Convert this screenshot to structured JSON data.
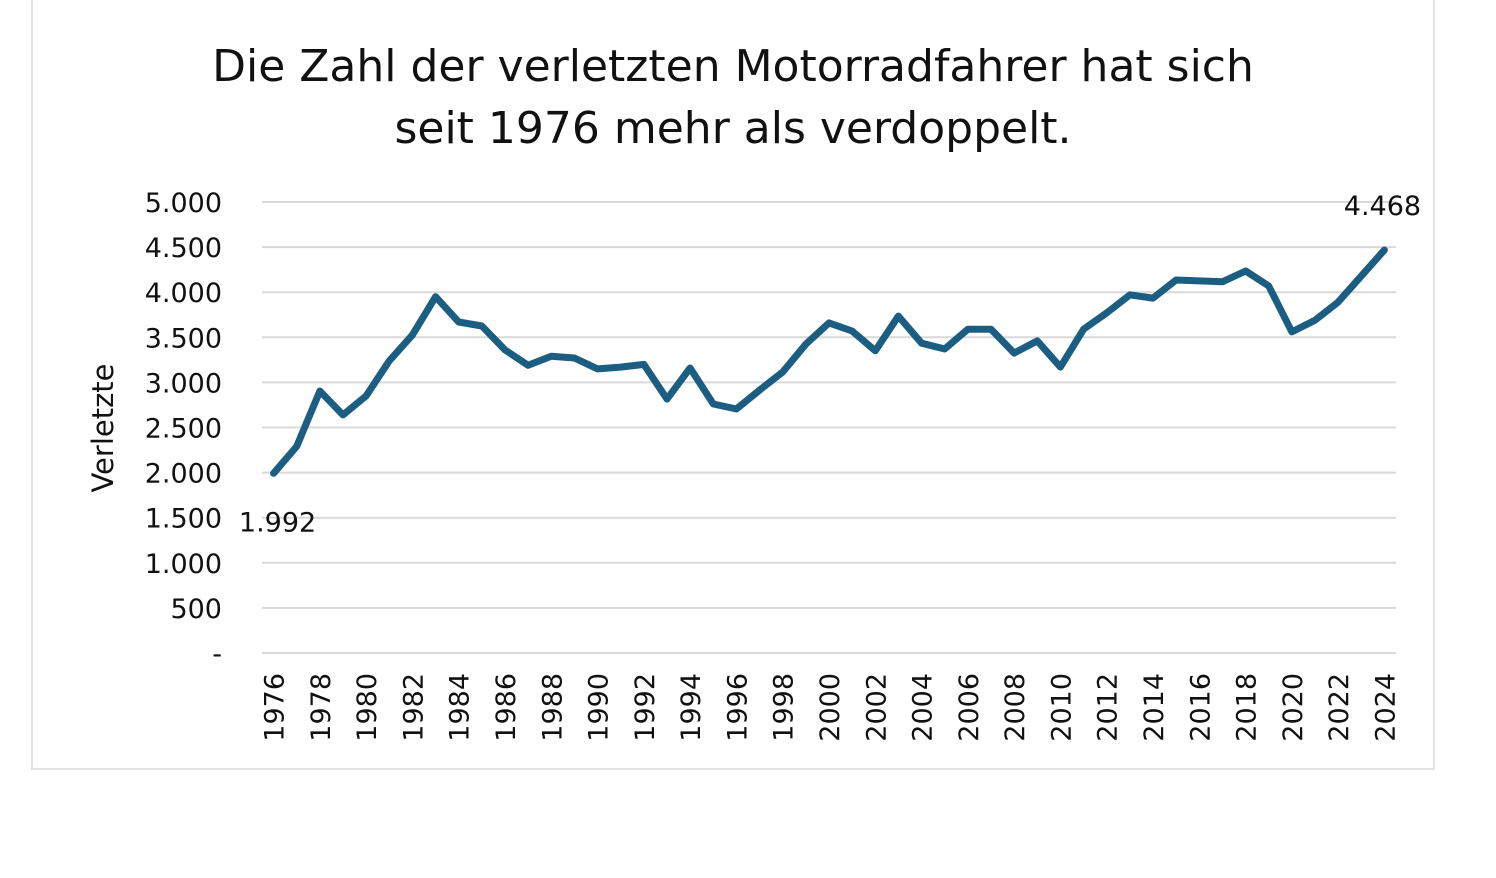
{
  "chart_data": {
    "type": "line",
    "title_lines": [
      "Die Zahl der verletzten Motorradfahrer hat sich",
      "seit 1976 mehr als verdoppelt."
    ],
    "xlabel": "",
    "ylabel": "Verletzte",
    "ylim": [
      0,
      5000
    ],
    "yticks": [
      0,
      500,
      1000,
      1500,
      2000,
      2500,
      3000,
      3500,
      4000,
      4500,
      5000
    ],
    "ytick_labels": [
      "-",
      "500",
      "1.000",
      "1.500",
      "2.000",
      "2.500",
      "3.000",
      "3.500",
      "4.000",
      "4.500",
      "5.000"
    ],
    "grid": true,
    "line_color": "#1b5e82",
    "x": [
      1976,
      1977,
      1978,
      1979,
      1980,
      1981,
      1982,
      1983,
      1984,
      1985,
      1986,
      1987,
      1988,
      1989,
      1990,
      1991,
      1992,
      1993,
      1994,
      1995,
      1996,
      1997,
      1998,
      1999,
      2000,
      2001,
      2002,
      2003,
      2004,
      2005,
      2006,
      2007,
      2008,
      2009,
      2010,
      2011,
      2012,
      2013,
      2014,
      2015,
      2016,
      2017,
      2018,
      2019,
      2020,
      2021,
      2022,
      2023,
      2024
    ],
    "xtick_labels": [
      "1976",
      "1978",
      "1980",
      "1982",
      "1984",
      "1986",
      "1988",
      "1990",
      "1992",
      "1994",
      "1996",
      "1998",
      "2000",
      "2002",
      "2004",
      "2006",
      "2008",
      "2010",
      "2012",
      "2014",
      "2016",
      "2018",
      "2020",
      "2022",
      "2024"
    ],
    "series": [
      {
        "values": [
          1992,
          2290,
          2905,
          2640,
          2850,
          3240,
          3525,
          3950,
          3670,
          3625,
          3360,
          3190,
          3290,
          3270,
          3150,
          3170,
          3200,
          2815,
          3160,
          2760,
          2705,
          2915,
          3115,
          3425,
          3660,
          3570,
          3350,
          3735,
          3435,
          3370,
          3590,
          3590,
          3325,
          3460,
          3170,
          3590,
          3770,
          3970,
          3935,
          4135,
          4125,
          4115,
          4235,
          4070,
          3560,
          3690,
          3890,
          4180,
          4468
        ]
      }
    ],
    "annotations": [
      {
        "year": 1976,
        "text": "1.992"
      },
      {
        "year": 2024,
        "text": "4.468"
      }
    ]
  }
}
